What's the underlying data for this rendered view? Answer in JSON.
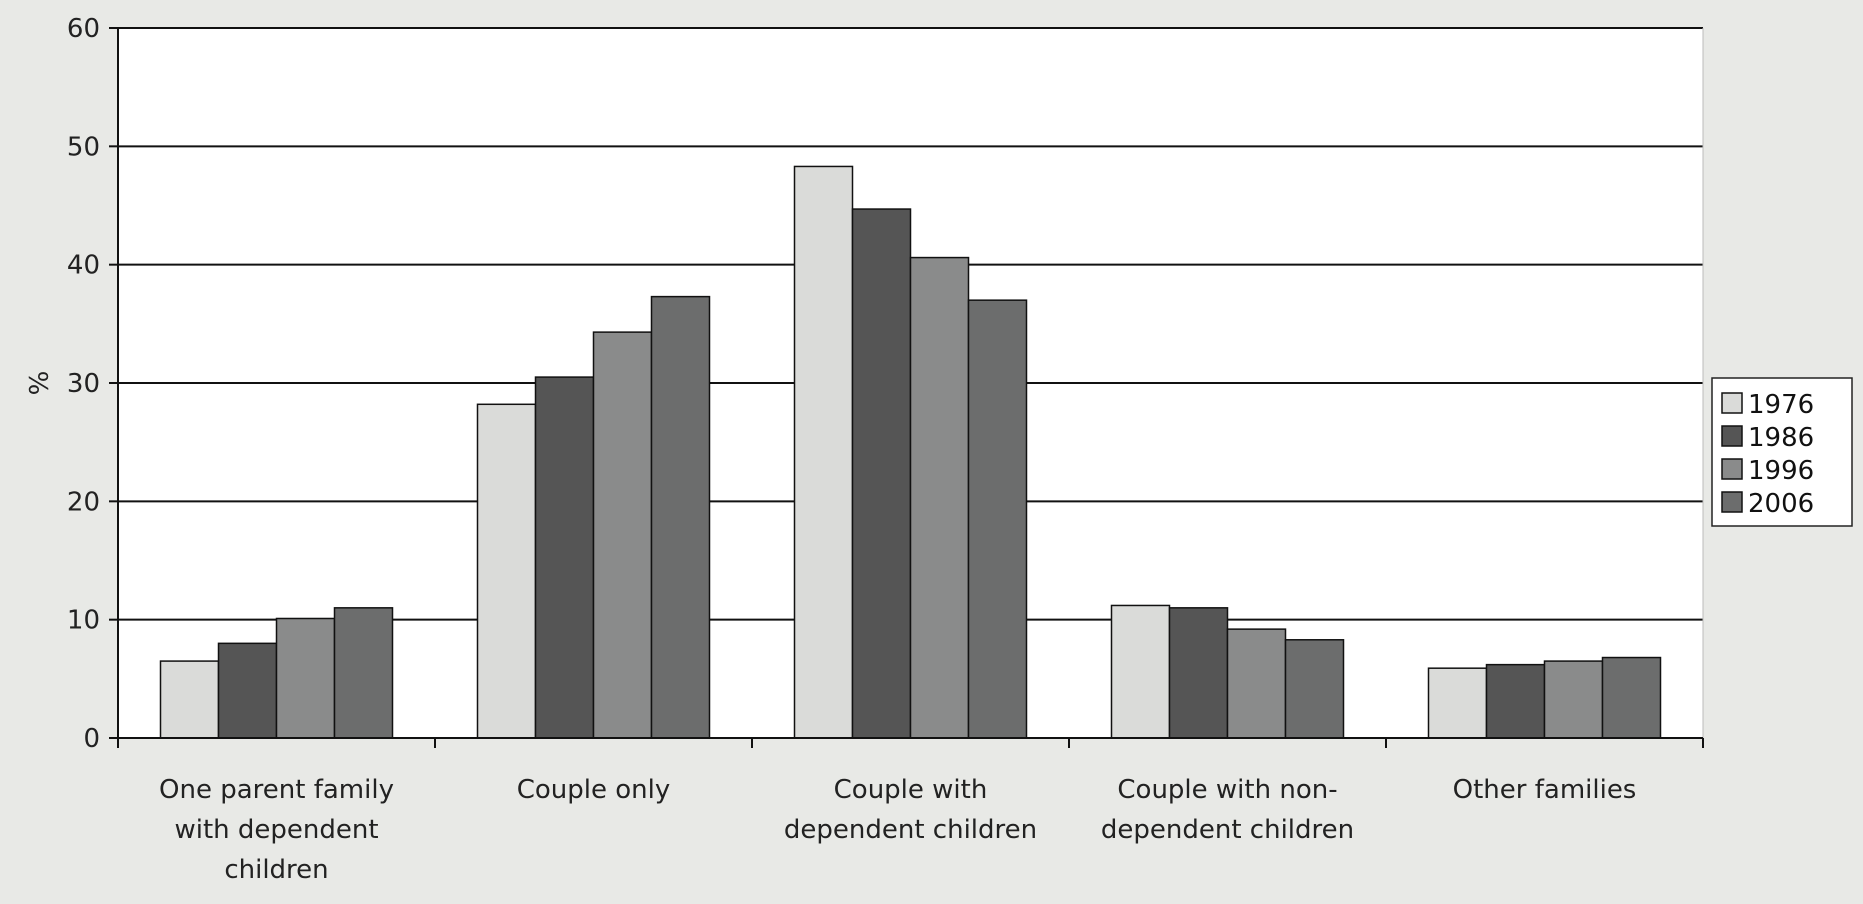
{
  "chart_data": {
    "type": "bar",
    "title": "",
    "xlabel": "",
    "ylabel": "%",
    "ylim": [
      0,
      60
    ],
    "yticks": [
      0,
      10,
      20,
      30,
      40,
      50,
      60
    ],
    "grid": true,
    "legend_position": "right",
    "categories": [
      [
        "One parent family",
        "with dependent",
        "children"
      ],
      [
        "Couple only"
      ],
      [
        "Couple with",
        "dependent children"
      ],
      [
        "Couple with non-",
        "dependent children"
      ],
      [
        "Other families"
      ]
    ],
    "series": [
      {
        "name": "1976",
        "color": "#dadbd9",
        "values": [
          6.5,
          28.2,
          48.3,
          11.2,
          5.9
        ]
      },
      {
        "name": "1986",
        "color": "#555555",
        "values": [
          8.0,
          30.5,
          44.7,
          11.0,
          6.2
        ]
      },
      {
        "name": "1996",
        "color": "#8a8b8b",
        "values": [
          10.1,
          34.3,
          40.6,
          9.2,
          6.5
        ]
      },
      {
        "name": "2006",
        "color": "#6c6d6d",
        "values": [
          11.0,
          37.3,
          37.0,
          8.3,
          6.8
        ]
      }
    ]
  }
}
